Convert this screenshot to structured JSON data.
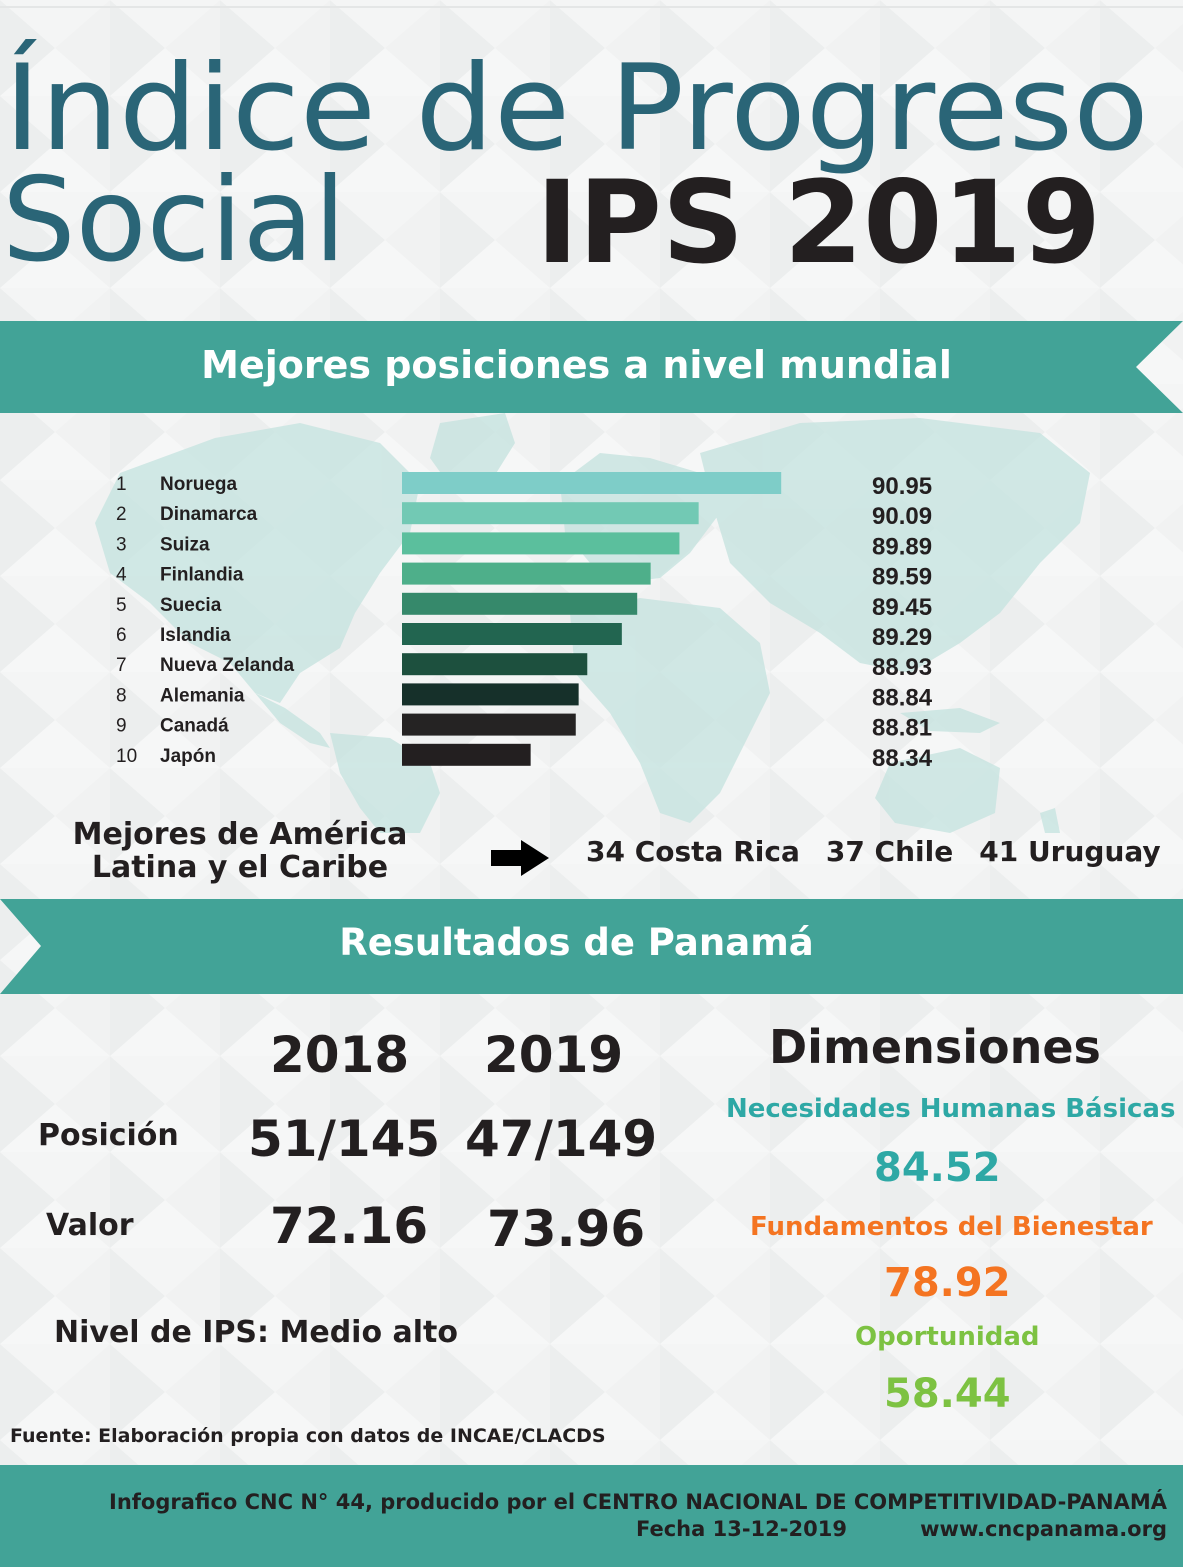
{
  "title": {
    "line1": "Índice de Progreso",
    "line2a": "Social",
    "line2b": "IPS 2019"
  },
  "colors": {
    "banner": "#42a397",
    "title_teal": "#2a6577",
    "dim1": "#2ea8a5",
    "dim2": "#f47421",
    "dim3": "#7dc242"
  },
  "banner1": "Mejores posiciones a nivel mundial",
  "chart_data": {
    "type": "bar",
    "orientation": "horizontal",
    "ranks": [
      "1",
      "2",
      "3",
      "4",
      "5",
      "6",
      "7",
      "8",
      "9",
      "10"
    ],
    "categories": [
      "Noruega",
      "Dinamarca",
      "Suiza",
      "Finlandia",
      "Suecia",
      "Islandia",
      "Nueva Zelanda",
      "Alemania",
      "Canadá",
      "Japón"
    ],
    "values": [
      90.95,
      90.09,
      89.89,
      89.59,
      89.45,
      89.29,
      88.93,
      88.84,
      88.81,
      88.34
    ],
    "value_labels": [
      "90.95",
      "90.09",
      "89.89",
      "89.59",
      "89.45",
      "89.29",
      "88.93",
      "88.84",
      "88.81",
      "88.34"
    ],
    "bar_colors": [
      "#7ecdc8",
      "#72c9b4",
      "#5bbf9d",
      "#4eaf8a",
      "#36896b",
      "#226550",
      "#1d503e",
      "#16302a",
      "#252323",
      "#231f20"
    ],
    "title": "",
    "xlabel": "",
    "ylabel": ""
  },
  "latam": {
    "label": "Mejores de América Latina y el Caribe",
    "items": [
      "34  Costa Rica",
      "37  Chile",
      "41 Uruguay"
    ]
  },
  "banner2": "Resultados de Panamá",
  "panama": {
    "years": [
      "2018",
      "2019"
    ],
    "posicion_label": "Posición",
    "posicion": [
      "51/145",
      "47/149"
    ],
    "valor_label": "Valor",
    "valor": [
      "72.16",
      "73.96"
    ],
    "nivel_label": "Nivel de IPS:",
    "nivel_value": "Medio alto"
  },
  "dimensiones": {
    "title": "Dimensiones",
    "items": [
      {
        "name": "Necesidades Humanas Básicas",
        "value": "84.52"
      },
      {
        "name": "Fundamentos del Bienestar",
        "value": "78.92"
      },
      {
        "name": "Oportunidad",
        "value": "58.44"
      }
    ]
  },
  "fuente": "Fuente: Elaboración propia con datos de INCAE/CLACDS",
  "footer": {
    "line1": "Infografico CNC N° 44, producido por el CENTRO NACIONAL DE COMPETITIVIDAD-PANAMÁ",
    "date": "Fecha 13-12-2019",
    "web": "www.cncpanama.org"
  }
}
